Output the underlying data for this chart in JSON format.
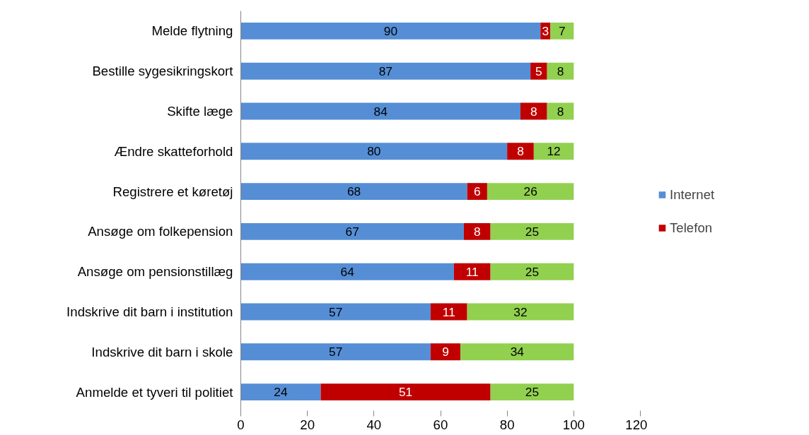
{
  "chart_data": {
    "type": "bar",
    "orientation": "horizontal",
    "stacked": true,
    "data_labels": true,
    "legend": "right",
    "grid": false,
    "categories": [
      "Melde flytning",
      "Bestille sygesikringskort",
      "Skifte læge",
      "Ændre skatteforhold",
      "Registrere et køretøj",
      "Ansøge om folkepension",
      "Ansøge om pensionstillæg",
      "Indskrive dit barn i institution",
      "Indskrive dit barn i skole",
      "Anmelde et tyveri til politiet"
    ],
    "series": [
      {
        "name": "Internet",
        "color": "#558ed5",
        "values": [
          90,
          87,
          84,
          80,
          68,
          67,
          64,
          57,
          57,
          24
        ]
      },
      {
        "name": "Telefon",
        "color": "#c00000",
        "values": [
          3,
          5,
          8,
          8,
          6,
          8,
          11,
          11,
          9,
          51
        ]
      },
      {
        "color": "#92d050",
        "values": [
          7,
          8,
          8,
          12,
          26,
          25,
          25,
          32,
          34,
          25
        ]
      }
    ],
    "xlim": [
      0,
      120
    ],
    "xticks": [
      0,
      20,
      40,
      60,
      80,
      100,
      120
    ]
  }
}
